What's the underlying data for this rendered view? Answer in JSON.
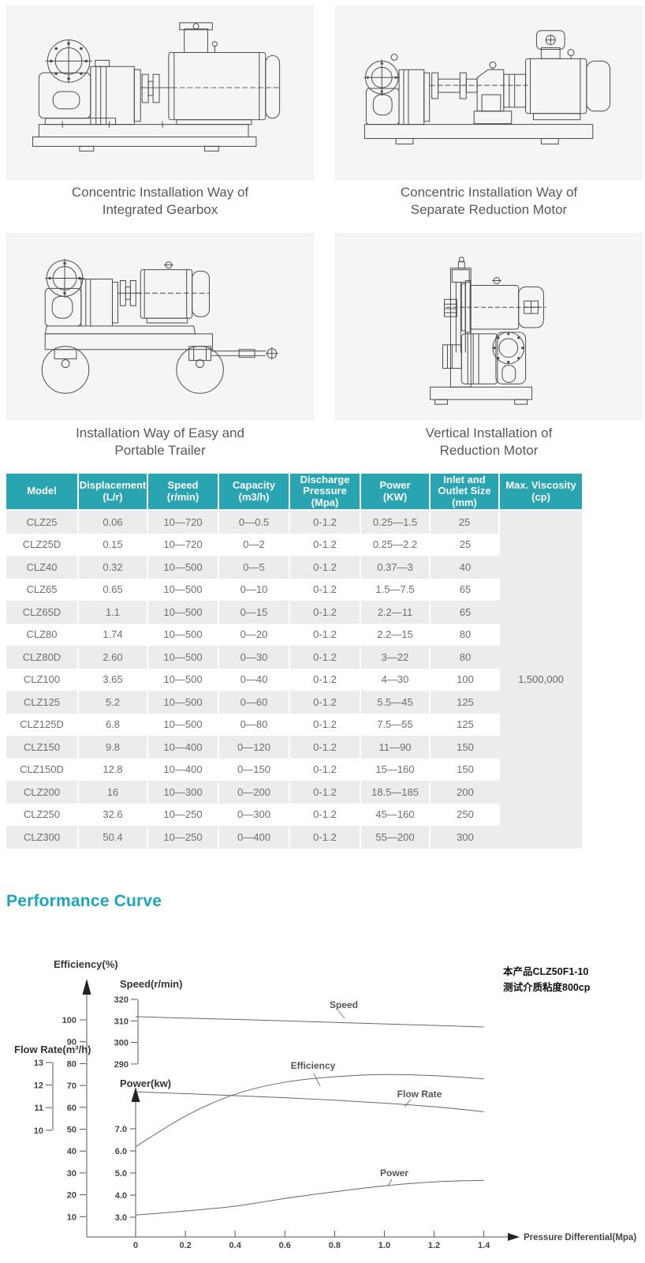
{
  "page": {
    "accent_teal": "#28a5b0",
    "heading_teal": "#1aa7bd"
  },
  "drawings": {
    "items": [
      {
        "name": "integrated-gearbox",
        "caption_line1": "Concentric Installation Way of",
        "caption_line2": "Integrated Gearbox"
      },
      {
        "name": "separate-reduction-motor",
        "caption_line1": "Concentric Installation Way of",
        "caption_line2": "Separate Reduction Motor"
      },
      {
        "name": "portable-trailer",
        "caption_line1": "Installation Way of Easy and",
        "caption_line2": "Portable Trailer"
      },
      {
        "name": "vertical-reduction-motor",
        "caption_line1": "Vertical Installation of",
        "caption_line2": "Reduction Motor"
      }
    ]
  },
  "spec_table": {
    "header": [
      [
        "Model"
      ],
      [
        "Displacement",
        "(L/r)"
      ],
      [
        "Speed",
        "(r/min)"
      ],
      [
        "Capacity",
        "(m3/h)"
      ],
      [
        "Discharge",
        "Pressure",
        "(Mpa)"
      ],
      [
        "Power",
        "(KW)"
      ],
      [
        "Inlet and",
        "Outlet Size",
        "(mm)"
      ],
      [
        "Max. Viscosity",
        "(cp)"
      ]
    ],
    "rows": [
      [
        "CLZ25",
        "0.06",
        "10—720",
        "0—0.5",
        "0-1.2",
        "0.25—1.5",
        "25"
      ],
      [
        "CLZ25D",
        "0.15",
        "10—720",
        "0—2",
        "0-1.2",
        "0.25—2.2",
        "25"
      ],
      [
        "CLZ40",
        "0.32",
        "10—500",
        "0—5",
        "0-1.2",
        "0.37—3",
        "40"
      ],
      [
        "CLZ65",
        "0.65",
        "10—500",
        "0—10",
        "0-1.2",
        "1.5—7.5",
        "65"
      ],
      [
        "CLZ65D",
        "1.1",
        "10—500",
        "0—15",
        "0-1.2",
        "2.2—11",
        "65"
      ],
      [
        "CLZ80",
        "1.74",
        "10—500",
        "0—20",
        "0-1.2",
        "2.2—15",
        "80"
      ],
      [
        "CLZ80D",
        "2.60",
        "10—500",
        "0—30",
        "0-1.2",
        "3—22",
        "80"
      ],
      [
        "CLZ100",
        "3.65",
        "10—500",
        "0—40",
        "0-1.2",
        "4—30",
        "100"
      ],
      [
        "CLZ125",
        "5.2",
        "10—500",
        "0—60",
        "0-1.2",
        "5.5—45",
        "125"
      ],
      [
        "CLZ125D",
        "6.8",
        "10—500",
        "0—80",
        "0-1.2",
        "7.5—55",
        "125"
      ],
      [
        "CLZ150",
        "9.8",
        "10—400",
        "0—120",
        "0-1.2",
        "11—90",
        "150"
      ],
      [
        "CLZ150D",
        "12.8",
        "10—400",
        "0—150",
        "0-1.2",
        "15—160",
        "150"
      ],
      [
        "CLZ200",
        "16",
        "10—300",
        "0—200",
        "0-1.2",
        "18.5—185",
        "200"
      ],
      [
        "CLZ250",
        "32.6",
        "10—250",
        "0—300",
        "0-1.2",
        "45—160",
        "250"
      ],
      [
        "CLZ300",
        "50.4",
        "10—250",
        "0—400",
        "0-1.2",
        "55—200",
        "300"
      ]
    ],
    "merged_max_viscosity": "1,500,000"
  },
  "performance": {
    "heading": "Performance Curve"
  },
  "chart_data": {
    "type": "line",
    "title": "Performance Curve",
    "grid": false,
    "legend_position": "inline-labels",
    "x_axis": {
      "label": "Pressure Differential(Mpa)",
      "range": [
        0,
        1.4
      ],
      "tick_labels": [
        "0",
        "0.2",
        "0.4",
        "0.6",
        "0.8",
        "1.0",
        "1.2",
        "1.4"
      ]
    },
    "y_axes": [
      {
        "id": "efficiency",
        "label": "Efficiency(%)",
        "range": [
          10,
          100
        ],
        "tick_labels": [
          "10",
          "20",
          "30",
          "40",
          "50",
          "60",
          "70",
          "80",
          "90",
          "100"
        ]
      },
      {
        "id": "speed",
        "label": "Speed(r/min)",
        "range": [
          290,
          320
        ],
        "tick_labels": [
          "290",
          "300",
          "310",
          "320"
        ]
      },
      {
        "id": "flow",
        "label": "Flow Rate(m³/h)",
        "range": [
          10,
          13
        ],
        "tick_labels": [
          "10",
          "11",
          "12",
          "13"
        ]
      },
      {
        "id": "power",
        "label": "Power(kw)",
        "range": [
          3.0,
          7.0
        ],
        "tick_labels": [
          "3.0",
          "4.0",
          "5.0",
          "6.0",
          "7.0"
        ]
      }
    ],
    "x": [
      0,
      0.2,
      0.4,
      0.6,
      0.8,
      1.0,
      1.2,
      1.4
    ],
    "series": [
      {
        "name": "Speed",
        "axis": "speed",
        "values": [
          312,
          311.3,
          310.7,
          310,
          309.3,
          308.6,
          307.9,
          307.2
        ]
      },
      {
        "name": "Efficiency",
        "axis": "efficiency",
        "values": [
          42,
          56,
          66,
          71.5,
          74,
          75,
          74.5,
          73
        ]
      },
      {
        "name": "Flow Rate",
        "axis": "flow",
        "values": [
          11.7,
          11.62,
          11.53,
          11.44,
          11.33,
          11.2,
          11.04,
          10.82
        ]
      },
      {
        "name": "Power",
        "axis": "power",
        "values": [
          3.1,
          3.28,
          3.5,
          3.85,
          4.15,
          4.42,
          4.6,
          4.67
        ]
      }
    ],
    "annotations": [
      "本产品CLZ50F1-10",
      "测试介质粘度800cp"
    ]
  }
}
